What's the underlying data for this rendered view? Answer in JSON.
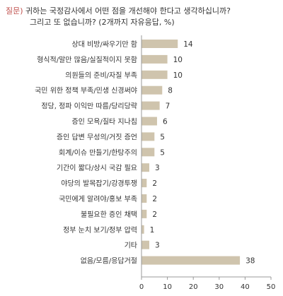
{
  "question": {
    "prefix": "질문)",
    "line1": "귀하는 국정감사에서 어떤 점을 개선해야 한다고 생각하십니까?",
    "line2": "그리고 또 없습니까? (2개까지 자유응답, %)"
  },
  "colors": {
    "bar": "#cfc4ad",
    "axis": "#999999",
    "text": "#333333",
    "prefix": "#c0504d"
  },
  "chart_data": {
    "type": "bar",
    "orientation": "horizontal",
    "categories": [
      "상대 비방/싸우기만 함",
      "형식적/말만 많음/실질적이지 못함",
      "의원들의 준비/자질 부족",
      "국민 위한 정책 부족/민생 신경써야",
      "정당, 정파 이익만 따름/당리당략",
      "증인 모욕/질타 지나침",
      "증인 답변 무성의/거짓 증언",
      "회계/이슈 만들기/한탕주의",
      "기간이 짧다/상시 국감 필요",
      "야당의 발목잡기/강경투쟁",
      "국민에게 알려야/홍보 부족",
      "불필요한 증인 채택",
      "정부 눈치 보기/정부 압력",
      "기타",
      "없음/모름/응답거절"
    ],
    "values": [
      14,
      10,
      10,
      8,
      7,
      6,
      5,
      5,
      3,
      2,
      2,
      2,
      1,
      3,
      38
    ],
    "xlim": [
      0,
      50
    ],
    "xticks": [
      0,
      10,
      20,
      30,
      40,
      50
    ],
    "grid": false,
    "legend": "none"
  }
}
